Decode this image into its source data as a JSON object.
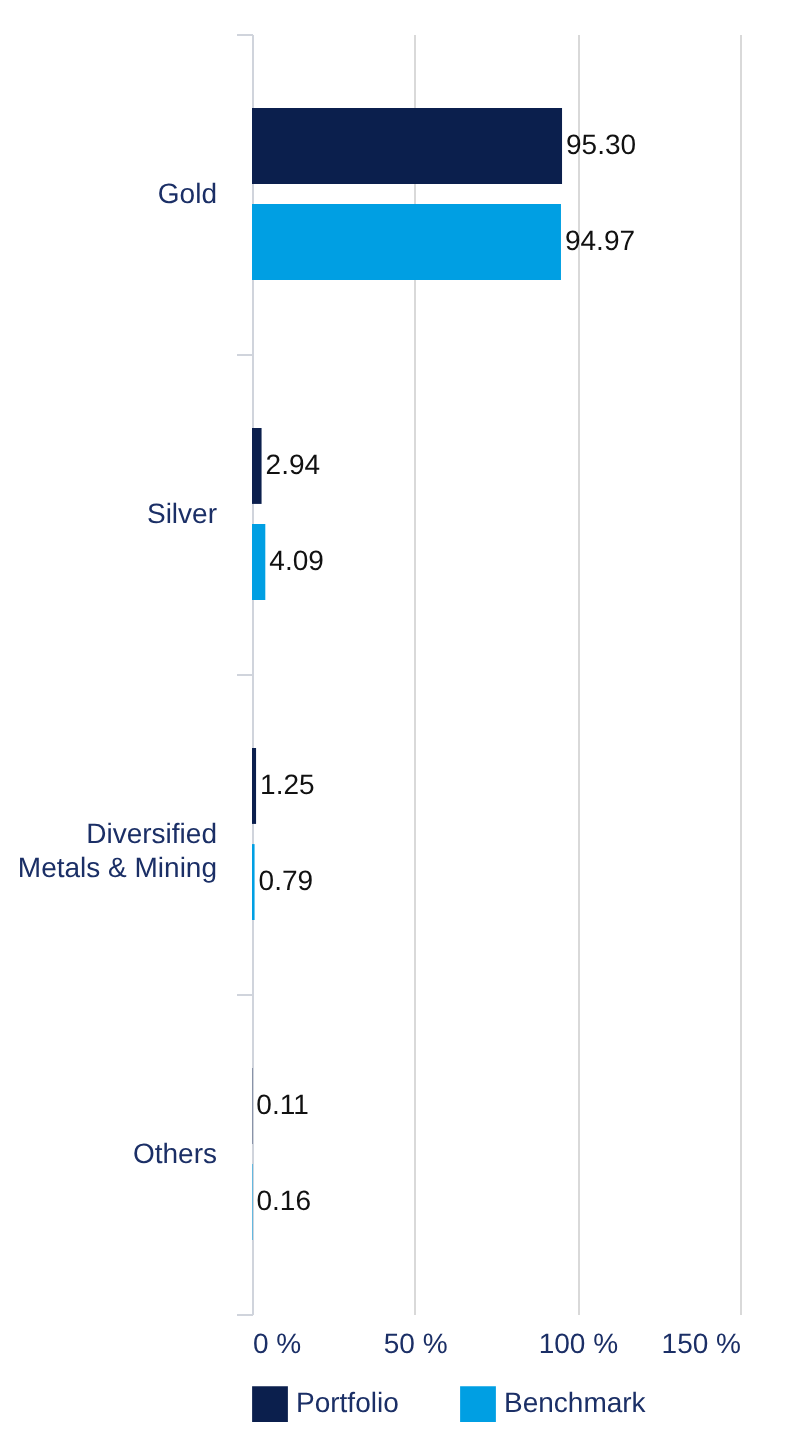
{
  "chart_data": {
    "type": "bar",
    "orientation": "horizontal",
    "categories": [
      "Gold",
      "Silver",
      "Diversified Metals & Mining",
      "Others"
    ],
    "series": [
      {
        "name": "Portfolio",
        "color": "#0b1f4d",
        "values": [
          95.3,
          2.94,
          1.25,
          0.11
        ],
        "value_labels": [
          "95.30",
          "2.94",
          "1.25",
          "0.11"
        ]
      },
      {
        "name": "Benchmark",
        "color": "#009fe3",
        "values": [
          94.97,
          4.09,
          0.79,
          0.16
        ],
        "value_labels": [
          "94.97",
          "4.09",
          "0.79",
          "0.16"
        ]
      }
    ],
    "xlim": [
      0,
      150
    ],
    "xticks": [
      {
        "value": 0,
        "label": "0 %"
      },
      {
        "value": 50,
        "label": "50 %"
      },
      {
        "value": 100,
        "label": "100 %"
      },
      {
        "value": 150,
        "label": "150 %"
      }
    ],
    "grid": "x",
    "legend": "bottom"
  }
}
